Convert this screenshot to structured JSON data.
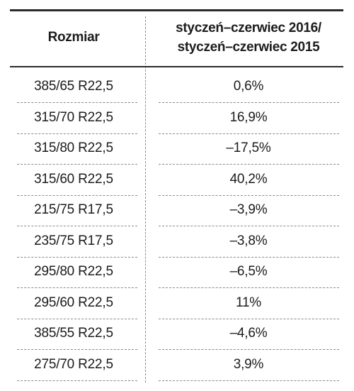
{
  "chart_data": {
    "type": "table",
    "columns": [
      "Rozmiar",
      "styczeń–czerwiec 2016/ styczeń–czerwiec 2015"
    ],
    "header": {
      "size": "Rozmiar",
      "change_line1": "styczeń–czerwiec 2016/",
      "change_line2": "styczeń–czerwiec 2015"
    },
    "rows": [
      {
        "size": "385/65 R22,5",
        "change": "0,6%"
      },
      {
        "size": "315/70 R22,5",
        "change": "16,9%"
      },
      {
        "size": "315/80 R22,5",
        "change": "–17,5%"
      },
      {
        "size": "315/60 R22,5",
        "change": "40,2%"
      },
      {
        "size": "215/75 R17,5",
        "change": "–3,9%"
      },
      {
        "size": "235/75 R17,5",
        "change": "–3,8%"
      },
      {
        "size": "295/80 R22,5",
        "change": "–6,5%"
      },
      {
        "size": "295/60 R22,5",
        "change": "11%"
      },
      {
        "size": "385/55 R22,5",
        "change": "–4,6%"
      },
      {
        "size": "275/70 R22,5",
        "change": "3,9%"
      }
    ]
  }
}
